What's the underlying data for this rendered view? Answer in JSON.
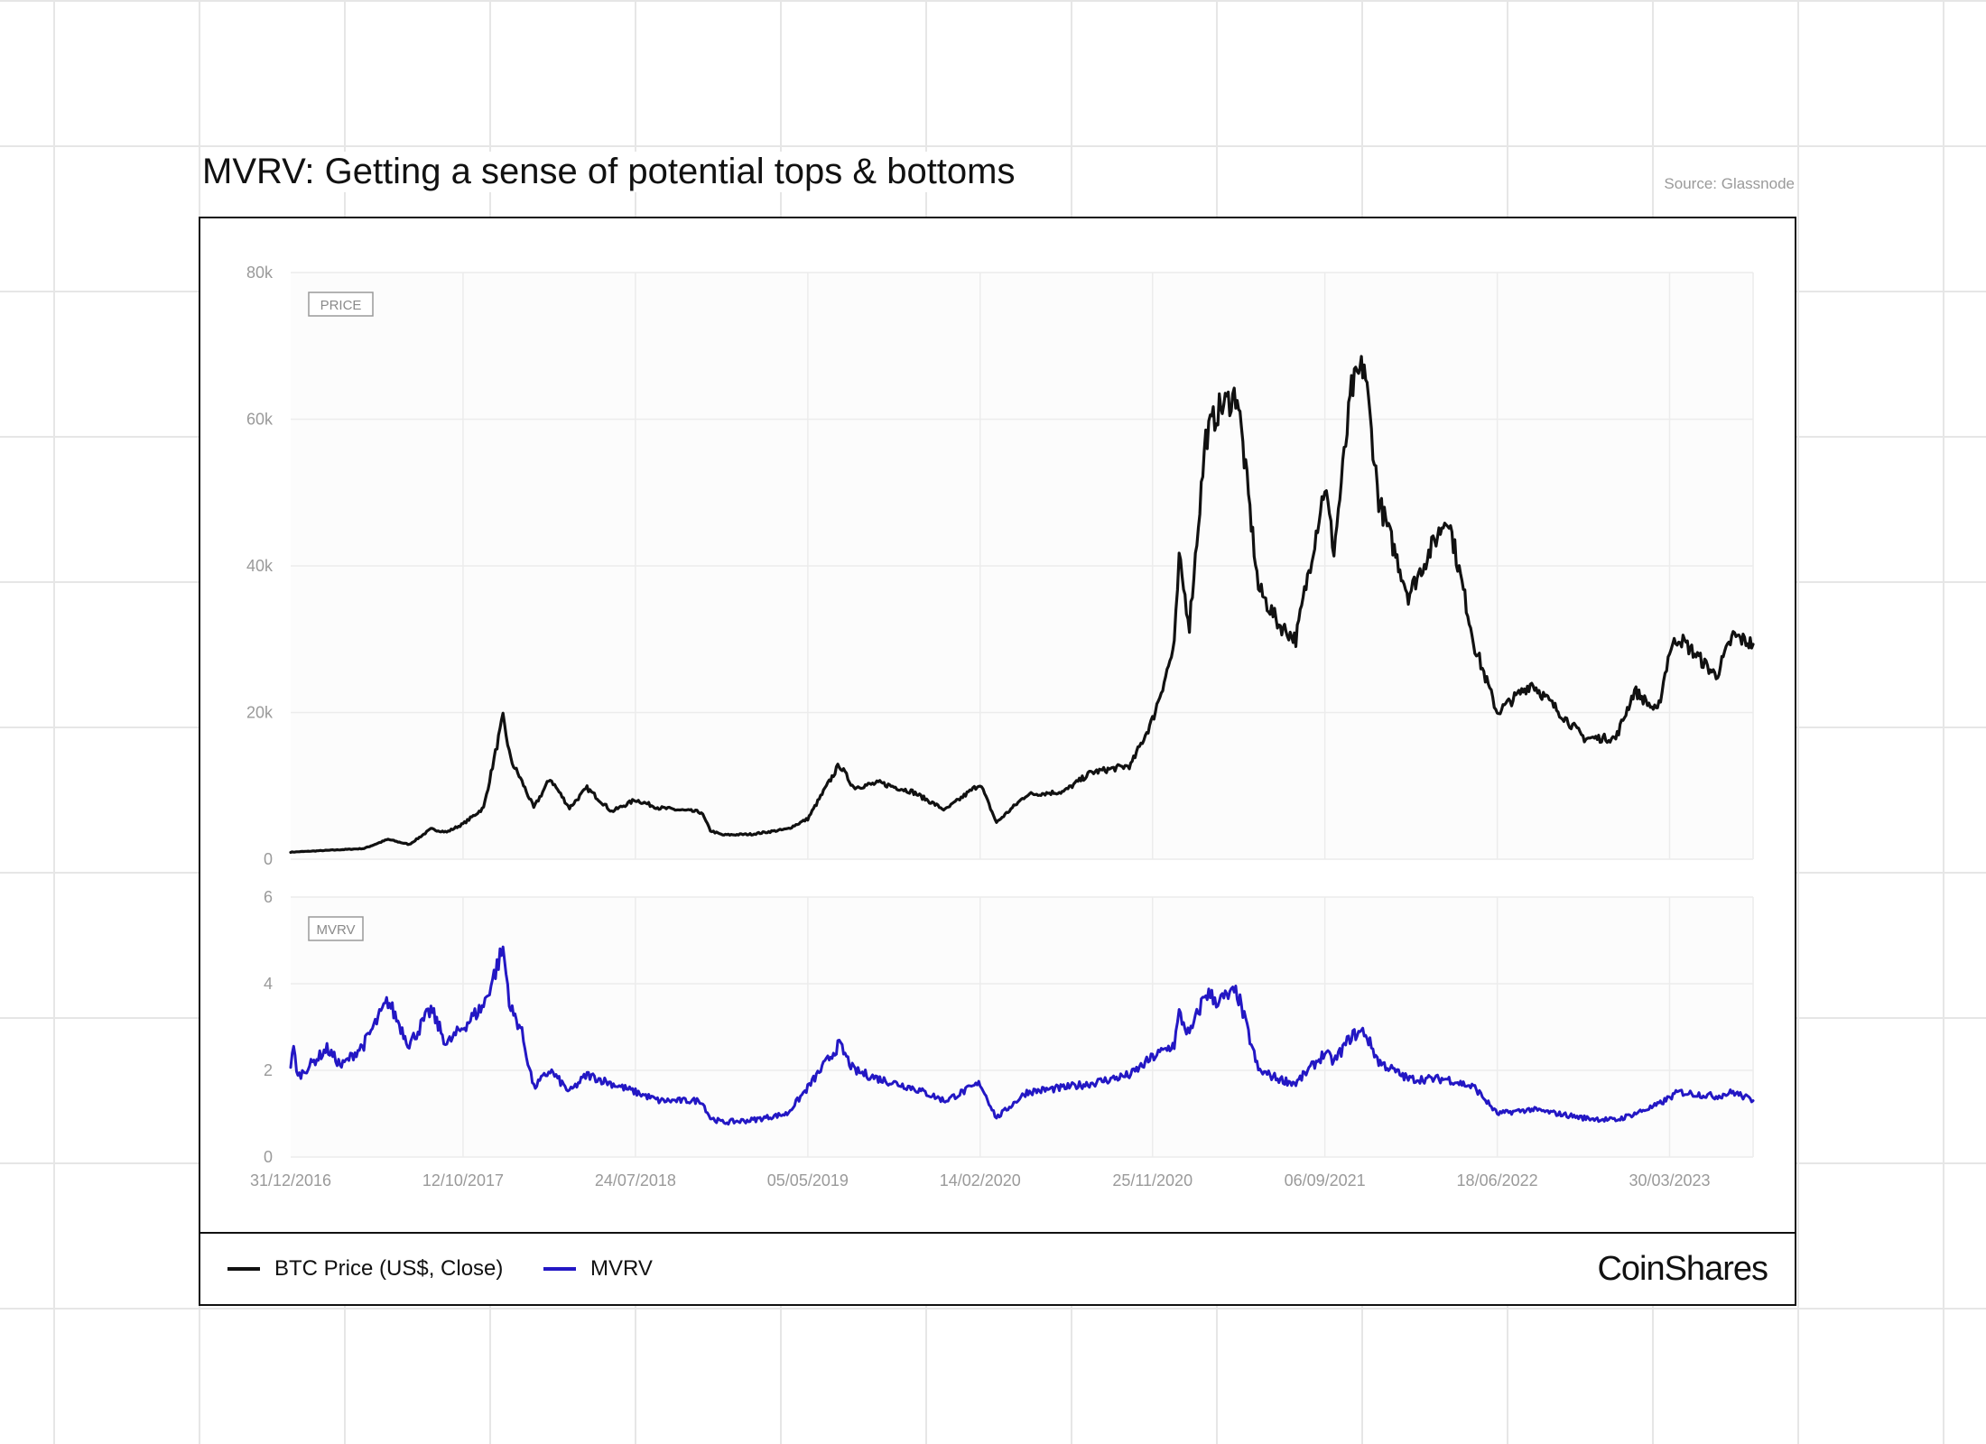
{
  "title": "MVRV: Getting a sense of potential tops & bottoms",
  "source": "Source: Glassnode",
  "brand": "CoinShares",
  "colors": {
    "price": "#111111",
    "mvrv": "#2317c4",
    "grid": "#ececec",
    "axis_text": "#9a9a9a"
  },
  "legend": [
    {
      "label": "BTC Price (US$, Close)",
      "color": "#111111"
    },
    {
      "label": "MVRV",
      "color": "#2317c4"
    }
  ],
  "chart_data": [
    {
      "type": "line",
      "panel_label": "PRICE",
      "grid": true,
      "ylim": [
        0,
        80000
      ],
      "yticks": [
        0,
        20000,
        40000,
        60000,
        80000
      ],
      "ytick_labels": [
        "0",
        "20k",
        "40k",
        "60k",
        "80k"
      ],
      "xlim": [
        "2016-12-31",
        "2023-08-15"
      ],
      "xticks": [
        "2016-12-31",
        "2017-10-12",
        "2018-07-24",
        "2019-05-05",
        "2020-02-14",
        "2020-11-25",
        "2021-09-06",
        "2022-06-18",
        "2023-03-30"
      ],
      "xtick_labels": [
        "31/12/2016",
        "12/10/2017",
        "24/07/2018",
        "05/05/2019",
        "14/02/2020",
        "25/11/2020",
        "06/09/2021",
        "18/06/2022",
        "30/03/2023"
      ],
      "series": [
        {
          "name": "BTC Price (US$, Close)",
          "x": [
            "2016-12-31",
            "2017-03-01",
            "2017-05-01",
            "2017-06-10",
            "2017-07-15",
            "2017-08-20",
            "2017-09-15",
            "2017-10-12",
            "2017-11-15",
            "2017-12-17",
            "2017-12-30",
            "2018-01-15",
            "2018-02-06",
            "2018-03-05",
            "2018-04-06",
            "2018-05-05",
            "2018-06-15",
            "2018-07-24",
            "2018-09-01",
            "2018-11-10",
            "2018-11-25",
            "2018-12-15",
            "2019-02-01",
            "2019-04-01",
            "2019-05-05",
            "2019-06-26",
            "2019-07-20",
            "2019-09-01",
            "2019-10-25",
            "2019-12-18",
            "2020-02-14",
            "2020-03-12",
            "2020-05-01",
            "2020-07-01",
            "2020-08-15",
            "2020-10-20",
            "2020-11-25",
            "2020-12-31",
            "2021-01-08",
            "2021-01-25",
            "2021-02-21",
            "2021-03-13",
            "2021-04-14",
            "2021-05-19",
            "2021-06-22",
            "2021-07-20",
            "2021-09-06",
            "2021-09-21",
            "2021-10-20",
            "2021-11-10",
            "2021-12-04",
            "2022-01-22",
            "2022-03-28",
            "2022-05-12",
            "2022-06-18",
            "2022-08-14",
            "2022-11-09",
            "2022-12-31",
            "2023-01-31",
            "2023-03-10",
            "2023-03-30",
            "2023-04-14",
            "2023-06-15",
            "2023-07-13",
            "2023-08-15"
          ],
          "values": [
            960,
            1200,
            1450,
            2700,
            2000,
            4100,
            3700,
            4800,
            7000,
            19300,
            13500,
            11000,
            7000,
            11000,
            7000,
            9700,
            6500,
            8100,
            7000,
            6400,
            3900,
            3300,
            3400,
            4100,
            5500,
            12900,
            9800,
            10400,
            9200,
            6700,
            10300,
            5000,
            8800,
            9200,
            11800,
            12800,
            19000,
            29000,
            40800,
            32000,
            57500,
            61200,
            63500,
            37000,
            32000,
            30000,
            51000,
            42000,
            64000,
            67500,
            49000,
            36000,
            47000,
            29000,
            20000,
            24000,
            16500,
            16500,
            23000,
            20000,
            28500,
            30300,
            25000,
            30500,
            29300
          ]
        }
      ]
    },
    {
      "type": "line",
      "panel_label": "MVRV",
      "grid": true,
      "ylim": [
        0,
        6
      ],
      "yticks": [
        0,
        2,
        4,
        6
      ],
      "ytick_labels": [
        "0",
        "2",
        "4",
        "6"
      ],
      "xlim": [
        "2016-12-31",
        "2023-08-15"
      ],
      "xticks": [
        "2016-12-31",
        "2017-10-12",
        "2018-07-24",
        "2019-05-05",
        "2020-02-14",
        "2020-11-25",
        "2021-09-06",
        "2022-06-18",
        "2023-03-30"
      ],
      "xtick_labels": [
        "31/12/2016",
        "12/10/2017",
        "24/07/2018",
        "05/05/2019",
        "14/02/2020",
        "25/11/2020",
        "06/09/2021",
        "18/06/2022",
        "30/03/2023"
      ],
      "series": [
        {
          "name": "MVRV",
          "x": [
            "2016-12-31",
            "2017-01-05",
            "2017-01-12",
            "2017-03-01",
            "2017-03-25",
            "2017-05-01",
            "2017-06-10",
            "2017-07-15",
            "2017-08-20",
            "2017-09-15",
            "2017-10-12",
            "2017-11-15",
            "2017-12-17",
            "2017-12-30",
            "2018-01-15",
            "2018-02-06",
            "2018-03-05",
            "2018-04-06",
            "2018-05-05",
            "2018-07-24",
            "2018-09-01",
            "2018-11-10",
            "2018-11-25",
            "2018-12-15",
            "2019-02-01",
            "2019-04-01",
            "2019-05-05",
            "2019-06-26",
            "2019-07-20",
            "2019-09-01",
            "2019-10-25",
            "2019-12-18",
            "2020-02-14",
            "2020-03-12",
            "2020-05-01",
            "2020-07-01",
            "2020-08-15",
            "2020-10-20",
            "2020-11-25",
            "2020-12-31",
            "2021-01-08",
            "2021-01-25",
            "2021-02-21",
            "2021-03-13",
            "2021-04-14",
            "2021-05-19",
            "2021-06-22",
            "2021-07-20",
            "2021-09-06",
            "2021-09-21",
            "2021-10-20",
            "2021-11-10",
            "2021-12-04",
            "2022-01-22",
            "2022-03-28",
            "2022-05-12",
            "2022-06-18",
            "2022-08-14",
            "2022-11-09",
            "2022-12-31",
            "2023-01-31",
            "2023-03-10",
            "2023-04-14",
            "2023-06-15",
            "2023-07-13",
            "2023-08-15"
          ],
          "values": [
            2.1,
            2.5,
            1.85,
            2.5,
            2.1,
            2.6,
            3.6,
            2.6,
            3.4,
            2.6,
            3.0,
            3.5,
            4.8,
            3.4,
            3.0,
            1.6,
            2.0,
            1.5,
            1.9,
            1.5,
            1.3,
            1.3,
            0.9,
            0.8,
            0.85,
            1.0,
            1.6,
            2.6,
            2.0,
            1.8,
            1.6,
            1.3,
            1.7,
            0.9,
            1.5,
            1.6,
            1.7,
            1.9,
            2.3,
            2.6,
            3.3,
            2.8,
            3.8,
            3.6,
            3.8,
            2.0,
            1.8,
            1.7,
            2.4,
            2.2,
            2.8,
            2.9,
            2.2,
            1.8,
            1.8,
            1.6,
            1.0,
            1.1,
            0.9,
            0.85,
            1.0,
            1.2,
            1.5,
            1.4,
            1.5,
            1.3
          ]
        }
      ]
    }
  ]
}
